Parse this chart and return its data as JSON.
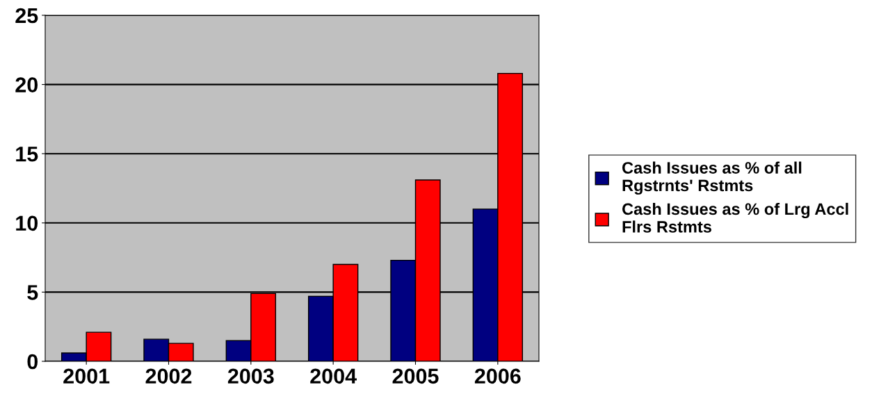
{
  "chart_data": {
    "type": "bar",
    "categories": [
      "2001",
      "2002",
      "2003",
      "2004",
      "2005",
      "2006"
    ],
    "series": [
      {
        "name": "Cash Issues as % of all Rgstrnts' Rstmts",
        "color": "#000080",
        "values": [
          0.6,
          1.6,
          1.5,
          4.7,
          7.3,
          11.0
        ]
      },
      {
        "name": "Cash Issues as % of Lrg Accl Flrs Rstmts",
        "color": "#ff0000",
        "values": [
          2.1,
          1.3,
          4.9,
          7.0,
          13.1,
          20.8
        ]
      }
    ],
    "ylim": [
      0,
      25
    ],
    "yticks": [
      0,
      5,
      10,
      15,
      20,
      25
    ],
    "grid": "y",
    "legend": "right"
  }
}
